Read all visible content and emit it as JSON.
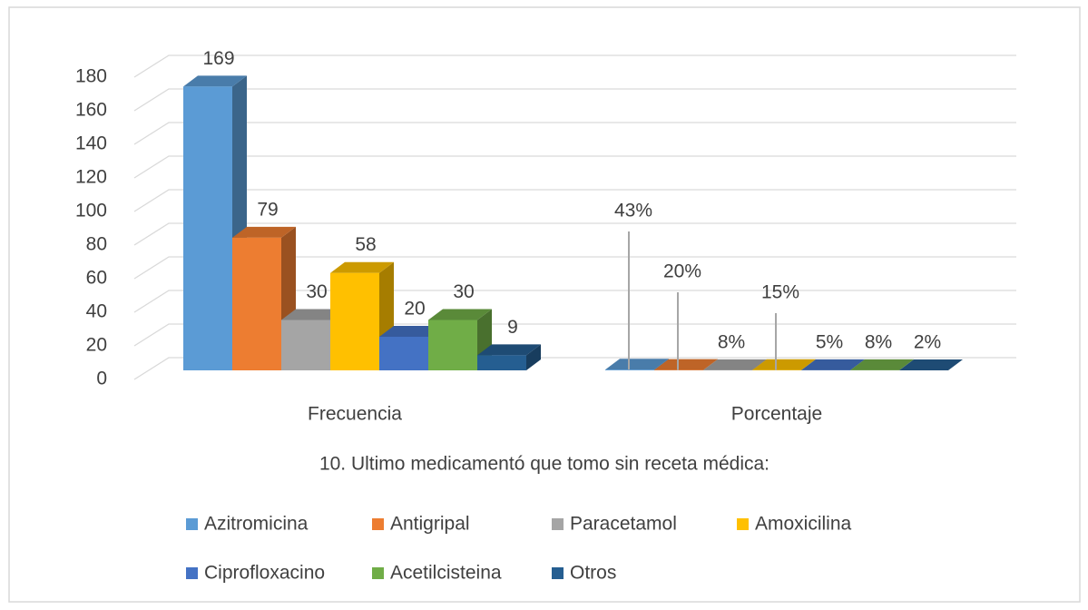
{
  "chart_data": {
    "type": "bar3d",
    "title": "10. Ultimo medicamentó que tomo sin receta médica:",
    "categories": [
      "Frecuencia",
      "Porcentaje"
    ],
    "series": [
      {
        "name": "Azitromicina",
        "color": "#5b9bd5",
        "values": [
          169,
          0.43
        ],
        "value_labels": [
          null,
          "43%"
        ]
      },
      {
        "name": "Antigripal",
        "color": "#ed7d31",
        "values": [
          79,
          0.2
        ],
        "value_labels": [
          null,
          "20%"
        ]
      },
      {
        "name": "Paracetamol",
        "color": "#a5a5a5",
        "values": [
          30,
          0.08
        ],
        "value_labels": [
          null,
          "8%"
        ]
      },
      {
        "name": "Amoxicilina",
        "color": "#ffc000",
        "values": [
          58,
          0.15
        ],
        "value_labels": [
          null,
          "15%"
        ]
      },
      {
        "name": "Ciprofloxacino",
        "color": "#4472c4",
        "values": [
          20,
          0.05
        ],
        "value_labels": [
          null,
          "5%"
        ]
      },
      {
        "name": "Acetilcisteina",
        "color": "#70ad47",
        "values": [
          30,
          0.08
        ],
        "value_labels": [
          null,
          "8%"
        ]
      },
      {
        "name": "Otros",
        "color": "#255e91",
        "values": [
          9,
          0.02
        ],
        "value_labels": [
          null,
          "2%"
        ]
      }
    ],
    "ylim": [
      0,
      180
    ],
    "yticks": [
      0,
      20,
      40,
      60,
      80,
      100,
      120,
      140,
      160,
      180
    ],
    "grid": true,
    "legend": "bottom"
  }
}
